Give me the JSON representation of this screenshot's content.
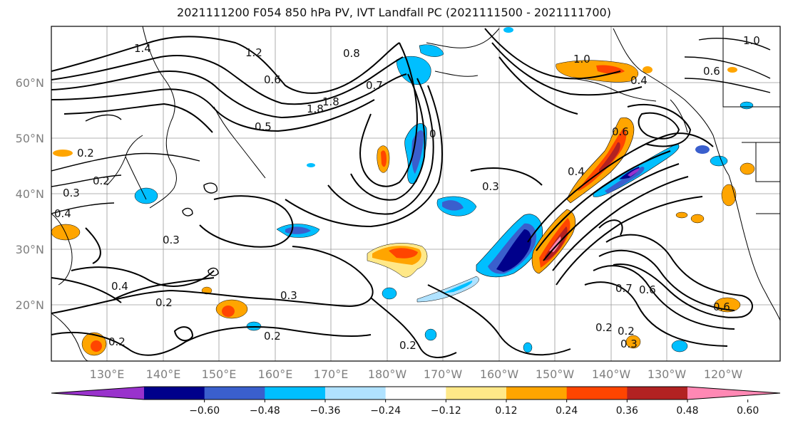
{
  "title": "2021111200 F054 850 hPa PV, IVT Landfall PC (2021111500 - 2021111700)",
  "lat_labels": [
    "60°N",
    "50°N",
    "40°N",
    "30°N",
    "20°N"
  ],
  "lon_labels": [
    "130°E",
    "140°E",
    "150°E",
    "160°E",
    "170°E",
    "180°W",
    "170°W",
    "160°W",
    "150°W",
    "140°W",
    "130°W",
    "120°W"
  ],
  "colorbar": {
    "ticks": [
      "−0.60",
      "−0.48",
      "−0.36",
      "−0.24",
      "−0.12",
      "0.12",
      "0.24",
      "0.36",
      "0.48",
      "0.60"
    ],
    "colors": [
      "#9932CC",
      "#00008B",
      "#3A5FCD",
      "#00BFFF",
      "#B0E2FF",
      "#FFFFFF",
      "#FFE888",
      "#FFA500",
      "#FF4500",
      "#B22222",
      "#FF88B4"
    ]
  },
  "contour_labels": [
    "1.4",
    "1.2",
    "0.8",
    "0.6",
    "0.7",
    "1.8",
    "1.8",
    "0.5",
    "0",
    "1.0",
    "0.4",
    "1.0",
    "0.6",
    "0.2",
    "0.2",
    "0.3",
    "0.4",
    "0.3",
    "0.3",
    "0.4",
    "0.2",
    "0.3",
    "0.2",
    "0.2",
    "0.2",
    "0.4",
    "0.6",
    "0.7",
    "0.6",
    "0.6",
    "0.2",
    "0.2",
    "0.3"
  ]
}
